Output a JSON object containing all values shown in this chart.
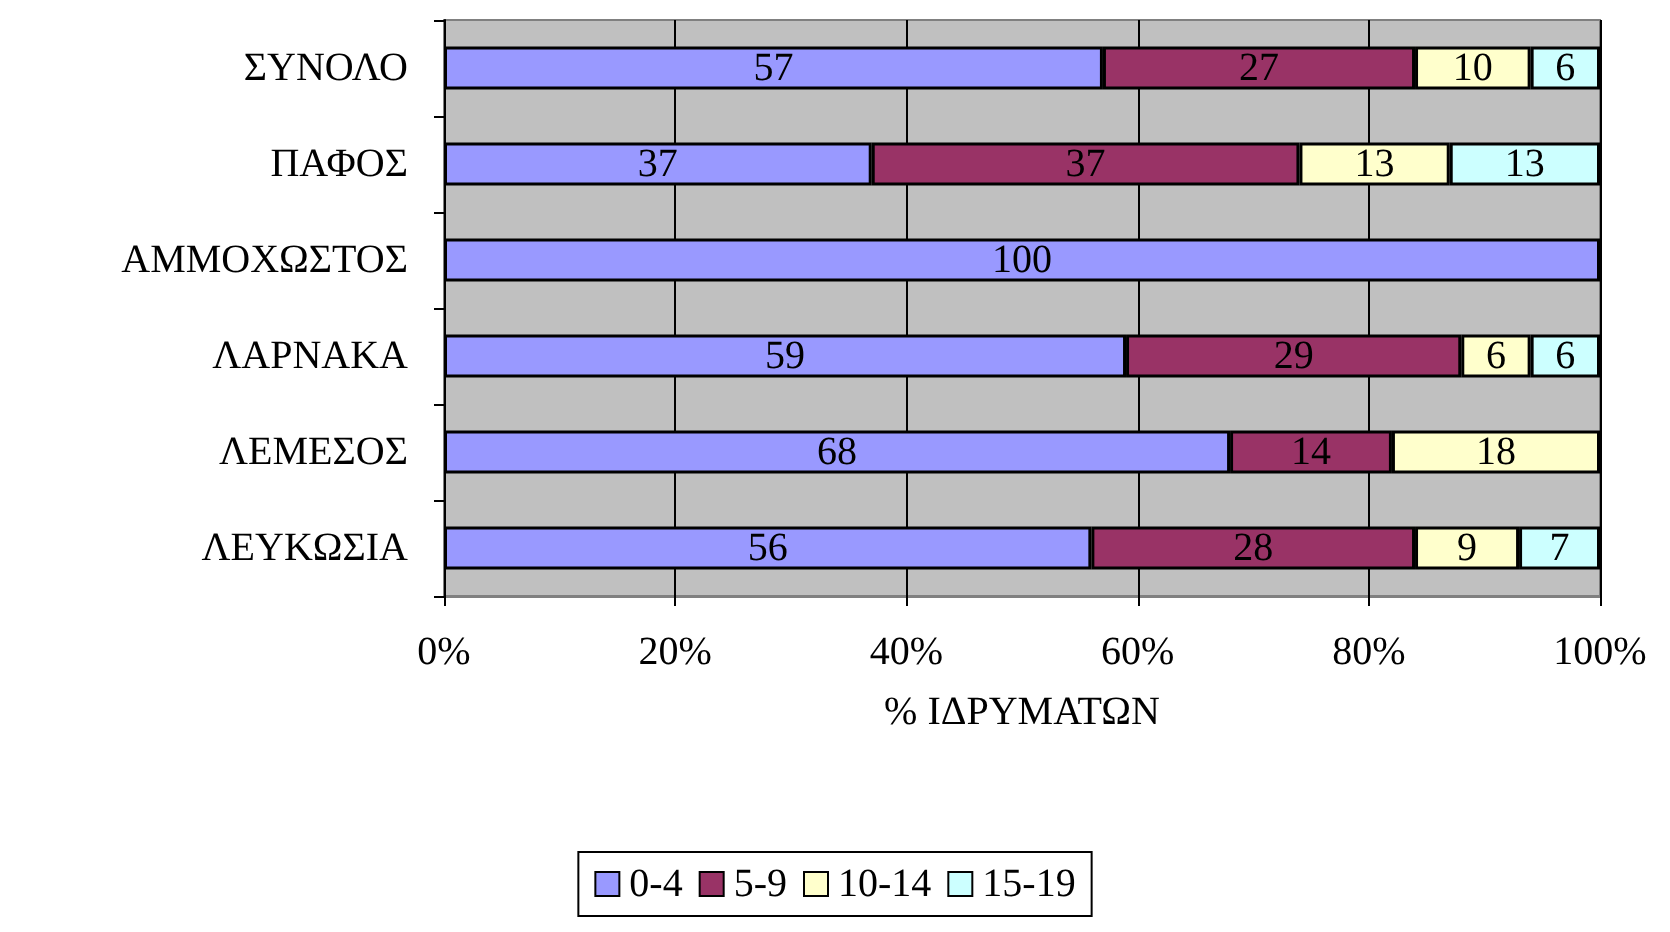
{
  "chart_data": {
    "type": "bar",
    "orientation": "horizontal",
    "stacked": true,
    "data_labels": true,
    "grid": "x",
    "legend": "bottom",
    "xlabel": "% ΙΔΡΥΜΑΤΩΝ",
    "categories": [
      "ΣΥΝΟΛΟ",
      "ΠΑΦΟΣ",
      "ΑΜΜΟΧΩΣΤΟΣ",
      "ΛΑΡΝΑΚΑ",
      "ΛΕΜΕΣΟΣ",
      "ΛΕΥΚΩΣΙΑ"
    ],
    "xlim": [
      0,
      100
    ],
    "xticks": [
      {
        "value": 0,
        "label": "0%"
      },
      {
        "value": 20,
        "label": "20%"
      },
      {
        "value": 40,
        "label": "40%"
      },
      {
        "value": 60,
        "label": "60%"
      },
      {
        "value": 80,
        "label": "80%"
      },
      {
        "value": 100,
        "label": "100%"
      }
    ],
    "series": [
      {
        "name": "0-4",
        "color": "#9999ff",
        "values": [
          57,
          37,
          100,
          59,
          68,
          56
        ]
      },
      {
        "name": "5-9",
        "color": "#993366",
        "values": [
          27,
          37,
          null,
          29,
          14,
          28
        ]
      },
      {
        "name": "10-14",
        "color": "#ffffcc",
        "values": [
          10,
          13,
          null,
          6,
          18,
          9
        ]
      },
      {
        "name": "15-19",
        "color": "#ccffff",
        "values": [
          6,
          13,
          null,
          6,
          null,
          7
        ]
      }
    ]
  }
}
